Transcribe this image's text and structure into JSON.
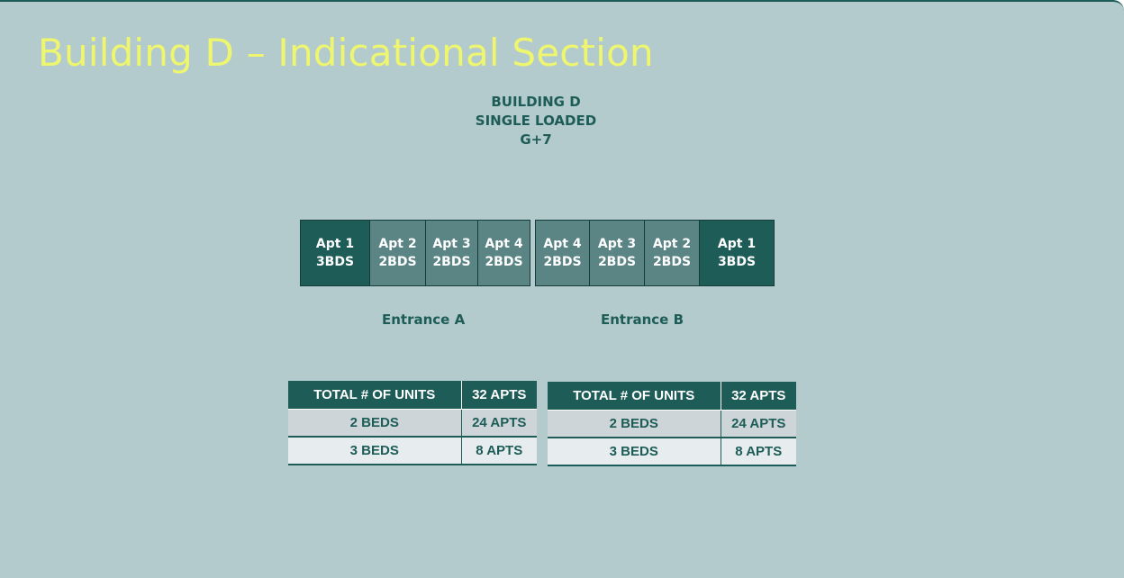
{
  "title": "Building D – Indicational Section",
  "subtitle": {
    "line1": "BUILDING D",
    "line2": "SINGLE LOADED",
    "line3": "G+7"
  },
  "entrance_a": {
    "label": "Entrance A",
    "apartments": [
      {
        "name": "Apt 1",
        "beds": "3BDS",
        "tone": "dark"
      },
      {
        "name": "Apt 2",
        "beds": "2BDS",
        "tone": "mid"
      },
      {
        "name": "Apt 3",
        "beds": "2BDS",
        "tone": "mid"
      },
      {
        "name": "Apt 4",
        "beds": "2BDS",
        "tone": "mid"
      }
    ]
  },
  "entrance_b": {
    "label": "Entrance B",
    "apartments": [
      {
        "name": "Apt 4",
        "beds": "2BDS",
        "tone": "mid"
      },
      {
        "name": "Apt 3",
        "beds": "2BDS",
        "tone": "mid"
      },
      {
        "name": "Apt 2",
        "beds": "2BDS",
        "tone": "mid"
      },
      {
        "name": "Apt 1",
        "beds": "3BDS",
        "tone": "dark"
      }
    ]
  },
  "tables": [
    {
      "rows": [
        [
          "TOTAL # OF UNITS",
          "32 APTS"
        ],
        [
          "2 BEDS",
          "24 APTS"
        ],
        [
          "3 BEDS",
          "8 APTS"
        ]
      ]
    },
    {
      "rows": [
        [
          "TOTAL # OF UNITS",
          "32 APTS"
        ],
        [
          "2 BEDS",
          "24 APTS"
        ],
        [
          "3 BEDS",
          "8 APTS"
        ]
      ]
    }
  ],
  "colors": {
    "background": "#b3cbcd",
    "title": "#eef56e",
    "dark_teal": "#1d5c57",
    "mid_teal": "#5a8584"
  }
}
